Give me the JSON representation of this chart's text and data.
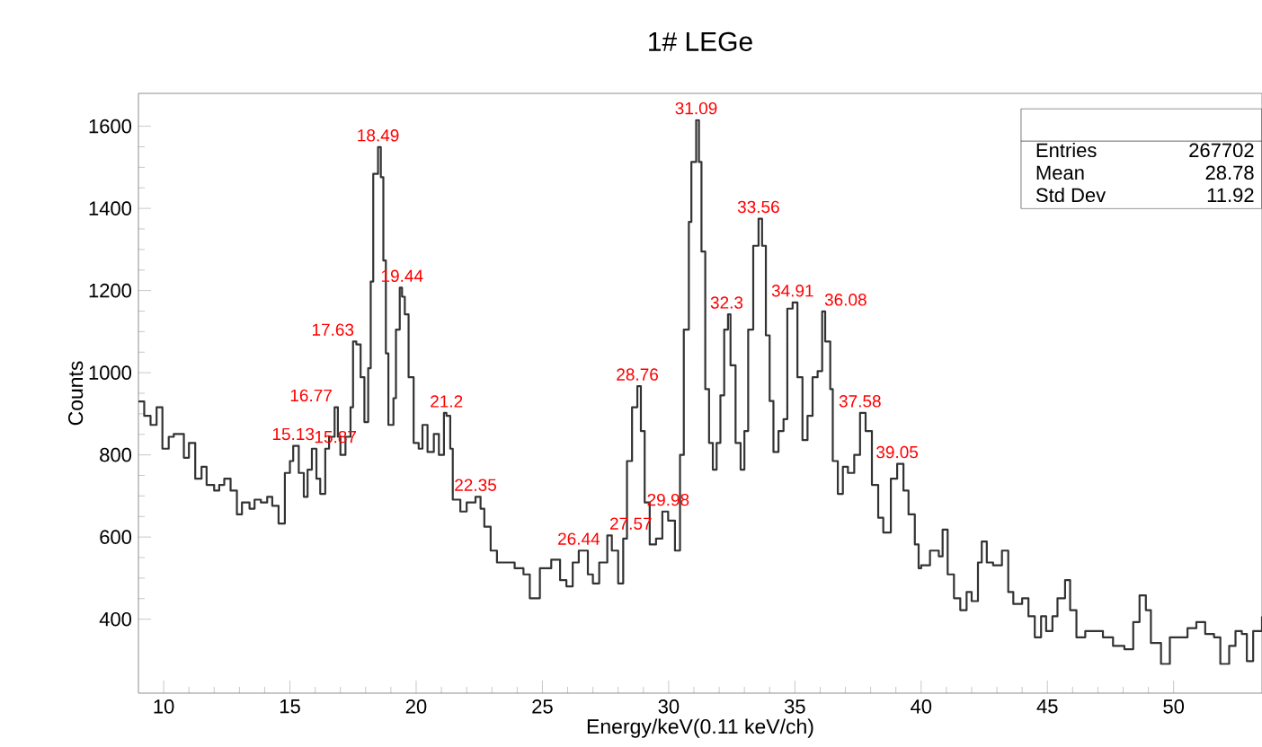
{
  "chart_data": {
    "type": "step",
    "title": "1# LEGe",
    "xlabel": "Energy/keV(0.11 keV/ch)",
    "ylabel": "Counts",
    "xlim": [
      9,
      53.5
    ],
    "ylim": [
      220,
      1680
    ],
    "xticks": [
      10,
      15,
      20,
      25,
      30,
      35,
      40,
      45,
      50
    ],
    "yticks": [
      400,
      600,
      800,
      1000,
      1200,
      1400,
      1600
    ],
    "series": [
      {
        "color": "#333333",
        "x": [
          9.0,
          9.23,
          9.48,
          9.72,
          9.95,
          10.2,
          10.4,
          10.8,
          11.0,
          11.25,
          11.5,
          11.7,
          12.0,
          12.2,
          12.4,
          12.65,
          12.9,
          13.1,
          13.4,
          13.6,
          13.85,
          14.1,
          14.3,
          14.55,
          14.8,
          15.0,
          15.13,
          15.35,
          15.55,
          15.7,
          15.87,
          16.05,
          16.2,
          16.4,
          16.55,
          16.77,
          16.9,
          17.0,
          17.2,
          17.4,
          17.5,
          17.63,
          17.8,
          17.95,
          18.1,
          18.2,
          18.3,
          18.49,
          18.6,
          18.7,
          18.8,
          18.9,
          19.1,
          19.2,
          19.35,
          19.44,
          19.55,
          19.7,
          19.9,
          20.1,
          20.25,
          20.45,
          20.7,
          20.9,
          21.1,
          21.2,
          21.35,
          21.45,
          21.75,
          22.0,
          22.35,
          22.55,
          22.7,
          22.95,
          23.2,
          23.55,
          23.9,
          24.25,
          24.5,
          24.9,
          25.35,
          25.7,
          25.95,
          26.2,
          26.44,
          26.8,
          27.0,
          27.25,
          27.57,
          27.75,
          28.0,
          28.2,
          28.35,
          28.55,
          28.76,
          28.9,
          29.05,
          29.25,
          29.5,
          29.75,
          29.98,
          30.25,
          30.45,
          30.6,
          30.8,
          30.9,
          31.09,
          31.2,
          31.3,
          31.45,
          31.6,
          31.75,
          31.9,
          32.05,
          32.2,
          32.35,
          32.45,
          32.65,
          32.85,
          33.0,
          33.15,
          33.35,
          33.56,
          33.7,
          33.85,
          34.0,
          34.15,
          34.35,
          34.55,
          34.7,
          34.91,
          35.1,
          35.3,
          35.5,
          35.7,
          35.9,
          36.08,
          36.2,
          36.4,
          36.5,
          36.7,
          36.9,
          37.1,
          37.35,
          37.58,
          37.8,
          38.05,
          38.3,
          38.5,
          38.8,
          39.05,
          39.3,
          39.5,
          39.75,
          39.9,
          40.0,
          40.35,
          40.7,
          40.85,
          41.05,
          41.3,
          41.55,
          41.8,
          42.0,
          42.25,
          42.4,
          42.6,
          42.85,
          43.2,
          43.45,
          43.65,
          44.0,
          44.25,
          44.5,
          44.75,
          44.95,
          45.2,
          45.4,
          45.7,
          45.9,
          46.15,
          46.5,
          46.85,
          47.2,
          47.6,
          48.05,
          48.4,
          48.65,
          48.9,
          49.1,
          49.5,
          49.85,
          50.2,
          50.55,
          50.9,
          51.25,
          51.6,
          51.85,
          52.2,
          52.45,
          52.7,
          52.9,
          53.15,
          53.5
        ],
        "values": [
          930,
          895,
          873,
          916,
          815,
          844,
          851,
          793,
          829,
          742,
          771,
          727,
          713,
          727,
          742,
          713,
          655,
          684,
          669,
          691,
          684,
          698,
          676,
          633,
          756,
          785,
          822,
          756,
          698,
          764,
          815,
          742,
          705,
          815,
          844,
          916,
          844,
          800,
          844,
          916,
          1076,
          1069,
          989,
          880,
          1011,
          1222,
          1484,
          1549,
          1476,
          1273,
          1047,
          873,
          938,
          1105,
          1207,
          1185,
          1142,
          989,
          829,
          815,
          873,
          807,
          851,
          800,
          902,
          895,
          815,
          691,
          662,
          684,
          698,
          669,
          625,
          567,
          538,
          538,
          524,
          509,
          451,
          524,
          545,
          495,
          480,
          538,
          567,
          509,
          487,
          538,
          604,
          567,
          487,
          596,
          785,
          916,
          967,
          858,
          684,
          582,
          596,
          662,
          640,
          567,
          800,
          1105,
          1367,
          1513,
          1615,
          1513,
          1295,
          960,
          829,
          764,
          829,
          945,
          1105,
          1142,
          1018,
          829,
          764,
          858,
          1105,
          1309,
          1375,
          1309,
          1091,
          931,
          807,
          858,
          887,
          1156,
          1171,
          989,
          836,
          895,
          989,
          1004,
          1149,
          1076,
          960,
          785,
          705,
          771,
          756,
          800,
          902,
          858,
          727,
          647,
          611,
          742,
          778,
          713,
          655,
          582,
          524,
          531,
          567,
          553,
          618,
          509,
          451,
          422,
          466,
          444,
          538,
          589,
          538,
          531,
          567,
          466,
          437,
          451,
          407,
          356,
          407,
          371,
          407,
          451,
          495,
          422,
          356,
          371,
          371,
          356,
          335,
          327,
          393,
          458,
          422,
          342,
          291,
          356,
          356,
          378,
          393,
          364,
          356,
          291,
          335,
          371,
          364,
          298,
          371,
          407
        ]
      }
    ],
    "annotations": [
      "Entries",
      "267702",
      "Mean",
      "28.78",
      "Std Dev",
      "11.92",
      {
        "text": "15.13",
        "x": 15.13,
        "y": 822
      },
      {
        "text": "15.87",
        "x": 15.87,
        "y": 815
      },
      {
        "text": "16.77",
        "x": 16.77,
        "y": 916
      },
      {
        "text": "17.63",
        "x": 17.63,
        "y": 1076
      },
      {
        "text": "18.49",
        "x": 18.49,
        "y": 1549
      },
      {
        "text": "19.44",
        "x": 19.44,
        "y": 1207
      },
      {
        "text": "21.2",
        "x": 21.2,
        "y": 902
      },
      {
        "text": "22.35",
        "x": 22.35,
        "y": 698
      },
      {
        "text": "26.44",
        "x": 26.44,
        "y": 567
      },
      {
        "text": "27.57",
        "x": 27.57,
        "y": 604
      },
      {
        "text": "28.76",
        "x": 28.76,
        "y": 967
      },
      {
        "text": "29.98",
        "x": 29.98,
        "y": 662
      },
      {
        "text": "31.09",
        "x": 31.09,
        "y": 1615
      },
      {
        "text": "32.3",
        "x": 32.3,
        "y": 1142
      },
      {
        "text": "33.56",
        "x": 33.56,
        "y": 1375
      },
      {
        "text": "34.91",
        "x": 34.91,
        "y": 1171
      },
      {
        "text": "36.08",
        "x": 36.08,
        "y": 1149
      },
      {
        "text": "37.58",
        "x": 37.58,
        "y": 902
      },
      {
        "text": "39.05",
        "x": 39.05,
        "y": 778
      }
    ]
  }
}
